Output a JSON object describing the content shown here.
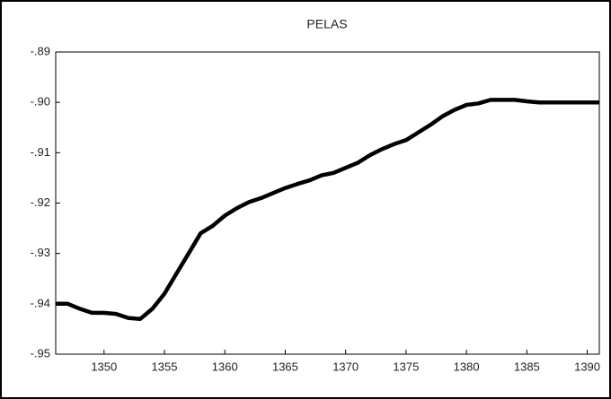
{
  "chart_data": {
    "type": "line",
    "title": "PELAS",
    "x": [
      1346,
      1347,
      1348,
      1349,
      1350,
      1351,
      1352,
      1353,
      1354,
      1355,
      1356,
      1357,
      1358,
      1359,
      1360,
      1361,
      1362,
      1363,
      1364,
      1365,
      1366,
      1367,
      1368,
      1369,
      1370,
      1371,
      1372,
      1373,
      1374,
      1375,
      1376,
      1377,
      1378,
      1379,
      1380,
      1381,
      1382,
      1383,
      1384,
      1385,
      1386,
      1387,
      1388,
      1389,
      1390,
      1391
    ],
    "series": [
      {
        "name": "PELAS",
        "color": "#000000",
        "values": [
          -0.94,
          -0.94,
          -0.941,
          -0.9418,
          -0.9418,
          -0.942,
          -0.9428,
          -0.943,
          -0.941,
          -0.938,
          -0.934,
          -0.93,
          -0.926,
          -0.9245,
          -0.9225,
          -0.921,
          -0.9198,
          -0.919,
          -0.918,
          -0.917,
          -0.9162,
          -0.9155,
          -0.9145,
          -0.914,
          -0.913,
          -0.912,
          -0.9105,
          -0.9093,
          -0.9083,
          -0.9075,
          -0.906,
          -0.9045,
          -0.9028,
          -0.9015,
          -0.9005,
          -0.9002,
          -0.8995,
          -0.8995,
          -0.8995,
          -0.8998,
          -0.9,
          -0.9,
          -0.9,
          -0.9,
          -0.9,
          -0.9
        ]
      }
    ],
    "xlim": [
      1346,
      1391
    ],
    "xticks": [
      1350,
      1355,
      1360,
      1365,
      1370,
      1375,
      1380,
      1385,
      1390
    ],
    "ylim": [
      -0.95,
      -0.89
    ],
    "yticks": [
      {
        "value": -0.89,
        "label": "-.89"
      },
      {
        "value": -0.9,
        "label": "-.90"
      },
      {
        "value": -0.91,
        "label": "-.91"
      },
      {
        "value": -0.92,
        "label": "-.92"
      },
      {
        "value": -0.93,
        "label": "-.93"
      },
      {
        "value": -0.94,
        "label": "-.94"
      },
      {
        "value": -0.95,
        "label": "-.95"
      }
    ]
  }
}
